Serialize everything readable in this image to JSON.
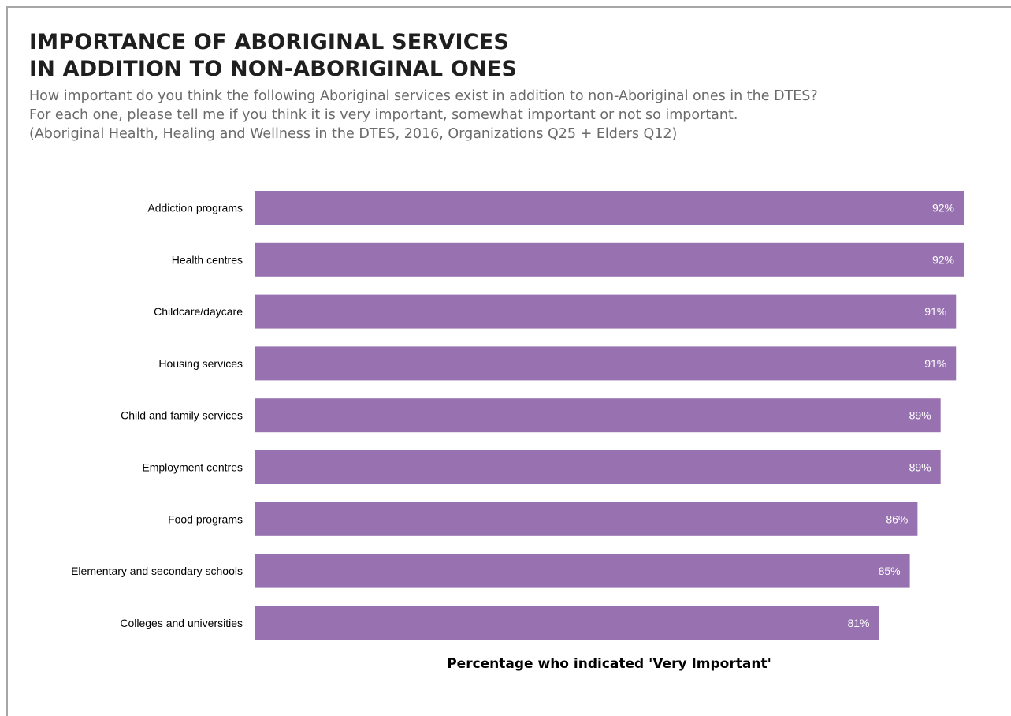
{
  "title_lines": [
    "IMPORTANCE OF ABORIGINAL SERVICES",
    "IN ADDITION TO NON-ABORIGINAL ONES"
  ],
  "subtitle_lines": [
    "How important do you think the following Aboriginal services exist in addition to non-Aboriginal ones in the DTES?",
    "For each one, please tell me if you think it is very important, somewhat important or not so important.",
    "(Aboriginal Health, Healing and Wellness in the DTES, 2016, Organizations Q25 + Elders Q12)"
  ],
  "chart_data": {
    "type": "bar",
    "orientation": "horizontal",
    "categories": [
      "Addiction programs",
      "Health centres",
      "Childcare/daycare",
      "Housing services",
      "Child and family services",
      "Employment centres",
      "Food programs",
      "Elementary and secondary schools",
      "Colleges and universities"
    ],
    "values": [
      92,
      92,
      91,
      91,
      89,
      89,
      86,
      85,
      81
    ],
    "value_labels": [
      "92%",
      "92%",
      "91%",
      "91%",
      "89%",
      "89%",
      "86%",
      "85%",
      "81%"
    ],
    "xlabel": "Percentage who indicated 'Very Important'",
    "ylabel": "",
    "bar_color": "#9771b0",
    "grid": false,
    "legend": "none"
  }
}
